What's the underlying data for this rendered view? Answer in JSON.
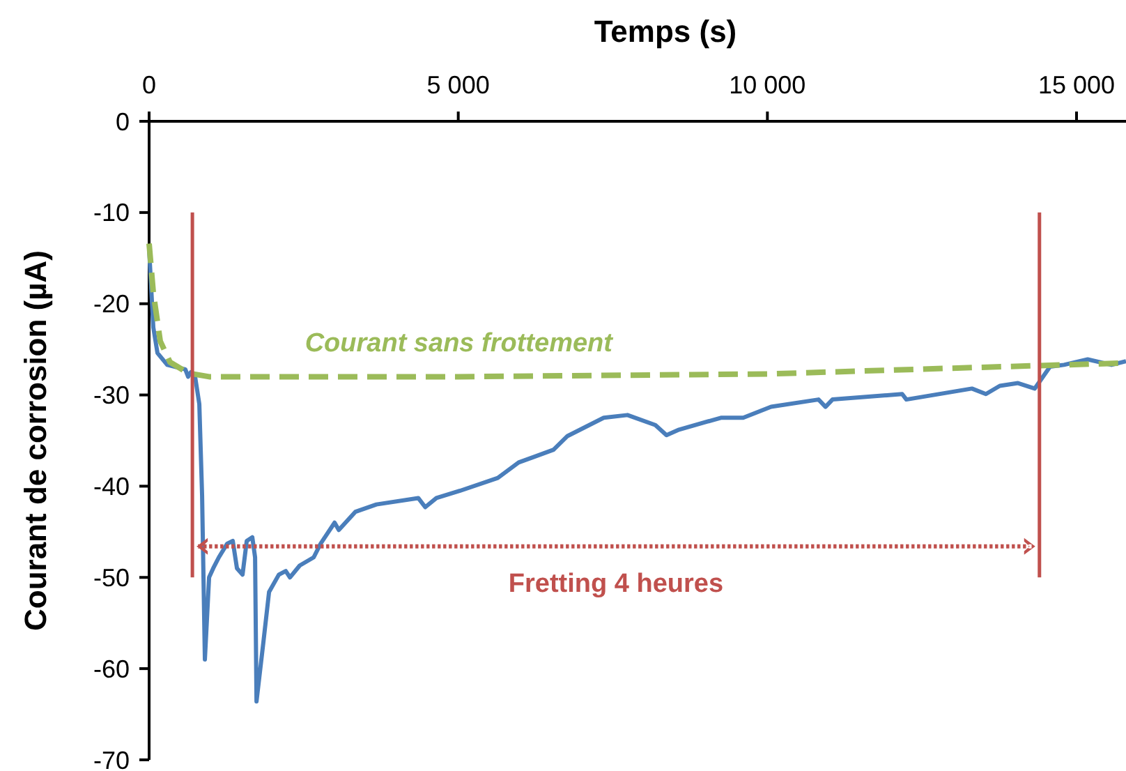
{
  "chart_data": {
    "type": "line",
    "xlabel": "Temps (s)",
    "ylabel": "Courant de corrosion (µA)",
    "xlim": [
      0,
      15800
    ],
    "ylim": [
      -70,
      0
    ],
    "xticks": [
      {
        "value": 0,
        "label": "0"
      },
      {
        "value": 5000,
        "label": "5 000"
      },
      {
        "value": 10000,
        "label": "10 000"
      },
      {
        "value": 15000,
        "label": "15 000"
      }
    ],
    "yticks": [
      0,
      -10,
      -20,
      -30,
      -40,
      -50,
      -60,
      -70
    ],
    "grid": false,
    "legend": false,
    "series": [
      {
        "color": "#4a7ebb",
        "line_style": "solid",
        "x": [
          0,
          68,
          135,
          293,
          586,
          631,
          676,
          744,
          812,
          857,
          902,
          970,
          1037,
          1128,
          1263,
          1353,
          1421,
          1511,
          1579,
          1669,
          1714,
          1737,
          1850,
          1940,
          2098,
          2210,
          2278,
          2436,
          2662,
          2774,
          3000,
          3068,
          3338,
          3677,
          4353,
          4466,
          4647,
          5030,
          5639,
          5977,
          6541,
          6767,
          7353,
          7737,
          8188,
          8368,
          8571,
          9248,
          9609,
          10060,
          10827,
          10940,
          11053,
          12180,
          12248,
          13308,
          13534,
          13759,
          14053,
          14323,
          14571,
          14797,
          15180,
          15564,
          15800
        ],
        "values": [
          -14,
          -22.6,
          -25.4,
          -26.7,
          -27.2,
          -28,
          -27.5,
          -28,
          -31,
          -41,
          -59,
          -50,
          -49,
          -47.8,
          -46.3,
          -46,
          -49,
          -49.7,
          -46,
          -45.6,
          -47.8,
          -63.6,
          -57,
          -51.6,
          -49.7,
          -49.3,
          -50,
          -48.7,
          -47.8,
          -46.3,
          -44,
          -44.8,
          -42.8,
          -42,
          -41.3,
          -42.3,
          -41.3,
          -40.5,
          -39.1,
          -37.4,
          -36,
          -34.5,
          -32.5,
          -32.2,
          -33.3,
          -34.4,
          -33.8,
          -32.5,
          -32.5,
          -31.3,
          -30.5,
          -31.3,
          -30.5,
          -29.9,
          -30.5,
          -29.3,
          -29.9,
          -29,
          -28.7,
          -29.3,
          -26.9,
          -26.7,
          -26.1,
          -26.7,
          -26.3
        ]
      },
      {
        "name": "Courant sans frottement",
        "color": "#9bbb59",
        "line_style": "dashed",
        "x": [
          0,
          68,
          180,
          338,
          631,
          970,
          5000,
          10000,
          13300,
          15800
        ],
        "values": [
          -13.4,
          -18.8,
          -24.1,
          -26.4,
          -27.6,
          -28,
          -28,
          -27.7,
          -27,
          -26.5
        ]
      }
    ],
    "ref_lines": [
      {
        "axis": "x",
        "value": 700,
        "color": "#c0504d"
      },
      {
        "axis": "x",
        "value": 14400,
        "color": "#c0504d"
      }
    ],
    "annotations": [
      "Fretting 4 heures"
    ]
  }
}
